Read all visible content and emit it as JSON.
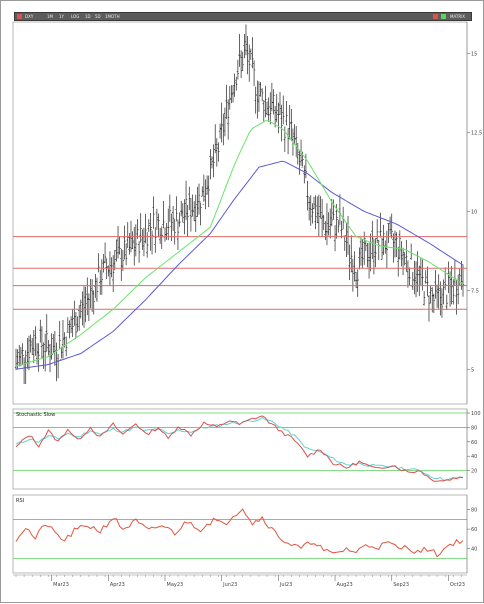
{
  "toolbar": {
    "symbol": "DXY",
    "items": [
      "1M",
      "1Y",
      "LOG",
      "1D",
      "5D",
      "1MOTH"
    ],
    "right_label": "MATRIX"
  },
  "colors": {
    "price": "#222222",
    "ma_fast": "#6be36b",
    "ma_slow": "#5b5bd6",
    "level_line": "#e06a6a",
    "stoch_k": "#d9534f",
    "stoch_d": "#5fd3d3",
    "rsi": "#e0563f",
    "grid_green": "#5ed15e",
    "toolbar_bg": "#5c5c5c"
  },
  "chart_data": [
    {
      "type": "ohlc",
      "name": "price",
      "months": [
        "Mar23",
        "Apr23",
        "May23",
        "Jun23",
        "Jul23",
        "Aug23",
        "Sep23",
        "Oct23"
      ],
      "yticks": [
        "15",
        "12.5",
        "10",
        "7.5",
        "5"
      ],
      "ylim": [
        3.9,
        16.0
      ],
      "close_anchors": [
        [
          0,
          5.2
        ],
        [
          12,
          5.9
        ],
        [
          25,
          5.6
        ],
        [
          40,
          6.8
        ],
        [
          55,
          8.2
        ],
        [
          70,
          8.8
        ],
        [
          85,
          9.6
        ],
        [
          100,
          9.7
        ],
        [
          115,
          10.5
        ],
        [
          125,
          12.0
        ],
        [
          135,
          14.3
        ],
        [
          142,
          15.1
        ],
        [
          150,
          13.7
        ],
        [
          160,
          13.2
        ],
        [
          170,
          12.5
        ],
        [
          182,
          10.3
        ],
        [
          190,
          9.6
        ],
        [
          200,
          9.6
        ],
        [
          210,
          8.2
        ],
        [
          222,
          9.0
        ],
        [
          234,
          9.0
        ],
        [
          246,
          8.1
        ],
        [
          258,
          7.2
        ],
        [
          268,
          7.5
        ],
        [
          276,
          8.0
        ]
      ],
      "ma_fast": [
        [
          0,
          5.1
        ],
        [
          20,
          5.4
        ],
        [
          40,
          6.1
        ],
        [
          60,
          6.9
        ],
        [
          80,
          7.9
        ],
        [
          100,
          8.7
        ],
        [
          120,
          9.5
        ],
        [
          135,
          11.5
        ],
        [
          145,
          12.6
        ],
        [
          155,
          12.9
        ],
        [
          165,
          12.6
        ],
        [
          180,
          11.6
        ],
        [
          195,
          10.3
        ],
        [
          210,
          9.2
        ],
        [
          225,
          8.9
        ],
        [
          240,
          8.8
        ],
        [
          255,
          8.4
        ],
        [
          276,
          7.7
        ]
      ],
      "ma_slow": [
        [
          0,
          5.0
        ],
        [
          20,
          5.15
        ],
        [
          40,
          5.5
        ],
        [
          60,
          6.2
        ],
        [
          80,
          7.2
        ],
        [
          100,
          8.3
        ],
        [
          120,
          9.3
        ],
        [
          135,
          10.4
        ],
        [
          150,
          11.4
        ],
        [
          165,
          11.6
        ],
        [
          180,
          11.2
        ],
        [
          195,
          10.6
        ],
        [
          215,
          10.0
        ],
        [
          235,
          9.6
        ],
        [
          255,
          9.0
        ],
        [
          276,
          8.3
        ]
      ],
      "levels": [
        9.2,
        8.2,
        7.65,
        6.9
      ]
    },
    {
      "type": "line",
      "name": "Stochastic Slow",
      "yticks": [
        "100",
        "80",
        "60",
        "40",
        "20"
      ],
      "levels": [
        100,
        80,
        20
      ],
      "k_anchors": [
        [
          0,
          52
        ],
        [
          8,
          70
        ],
        [
          14,
          55
        ],
        [
          20,
          75
        ],
        [
          26,
          60
        ],
        [
          32,
          78
        ],
        [
          38,
          62
        ],
        [
          46,
          80
        ],
        [
          52,
          66
        ],
        [
          60,
          84
        ],
        [
          66,
          70
        ],
        [
          74,
          86
        ],
        [
          80,
          70
        ],
        [
          88,
          80
        ],
        [
          94,
          64
        ],
        [
          100,
          82
        ],
        [
          108,
          70
        ],
        [
          116,
          86
        ],
        [
          124,
          80
        ],
        [
          132,
          90
        ],
        [
          138,
          84
        ],
        [
          146,
          92
        ],
        [
          152,
          96
        ],
        [
          158,
          84
        ],
        [
          164,
          74
        ],
        [
          172,
          62
        ],
        [
          180,
          40
        ],
        [
          188,
          50
        ],
        [
          196,
          30
        ],
        [
          204,
          24
        ],
        [
          212,
          32
        ],
        [
          222,
          22
        ],
        [
          232,
          28
        ],
        [
          242,
          18
        ],
        [
          250,
          20
        ],
        [
          256,
          8
        ],
        [
          264,
          6
        ],
        [
          272,
          10
        ],
        [
          276,
          12
        ]
      ],
      "d_anchors": [
        [
          0,
          56
        ],
        [
          8,
          64
        ],
        [
          14,
          60
        ],
        [
          20,
          68
        ],
        [
          26,
          64
        ],
        [
          32,
          72
        ],
        [
          38,
          66
        ],
        [
          46,
          76
        ],
        [
          52,
          70
        ],
        [
          60,
          78
        ],
        [
          66,
          74
        ],
        [
          74,
          80
        ],
        [
          80,
          75
        ],
        [
          88,
          78
        ],
        [
          94,
          70
        ],
        [
          100,
          76
        ],
        [
          108,
          74
        ],
        [
          116,
          80
        ],
        [
          124,
          82
        ],
        [
          132,
          86
        ],
        [
          138,
          86
        ],
        [
          146,
          90
        ],
        [
          152,
          92
        ],
        [
          158,
          88
        ],
        [
          164,
          80
        ],
        [
          172,
          68
        ],
        [
          180,
          50
        ],
        [
          188,
          46
        ],
        [
          196,
          36
        ],
        [
          204,
          28
        ],
        [
          212,
          30
        ],
        [
          222,
          26
        ],
        [
          232,
          26
        ],
        [
          242,
          22
        ],
        [
          250,
          20
        ],
        [
          256,
          12
        ],
        [
          264,
          8
        ],
        [
          272,
          9
        ],
        [
          276,
          11
        ]
      ]
    },
    {
      "type": "line",
      "name": "RSI",
      "yticks": [
        "80",
        "60",
        "40"
      ],
      "levels": [
        70,
        30
      ],
      "anchors": [
        [
          0,
          50
        ],
        [
          6,
          62
        ],
        [
          12,
          50
        ],
        [
          18,
          66
        ],
        [
          24,
          56
        ],
        [
          30,
          48
        ],
        [
          36,
          58
        ],
        [
          44,
          64
        ],
        [
          52,
          58
        ],
        [
          60,
          72
        ],
        [
          66,
          60
        ],
        [
          74,
          68
        ],
        [
          82,
          58
        ],
        [
          90,
          64
        ],
        [
          98,
          56
        ],
        [
          106,
          68
        ],
        [
          114,
          60
        ],
        [
          122,
          70
        ],
        [
          128,
          64
        ],
        [
          134,
          74
        ],
        [
          140,
          82
        ],
        [
          146,
          66
        ],
        [
          152,
          72
        ],
        [
          158,
          60
        ],
        [
          164,
          50
        ],
        [
          170,
          44
        ],
        [
          176,
          40
        ],
        [
          184,
          48
        ],
        [
          190,
          38
        ],
        [
          196,
          34
        ],
        [
          204,
          40
        ],
        [
          210,
          36
        ],
        [
          216,
          44
        ],
        [
          224,
          42
        ],
        [
          230,
          46
        ],
        [
          236,
          40
        ],
        [
          242,
          42
        ],
        [
          248,
          36
        ],
        [
          254,
          40
        ],
        [
          260,
          34
        ],
        [
          266,
          42
        ],
        [
          272,
          48
        ],
        [
          276,
          46
        ]
      ]
    }
  ]
}
